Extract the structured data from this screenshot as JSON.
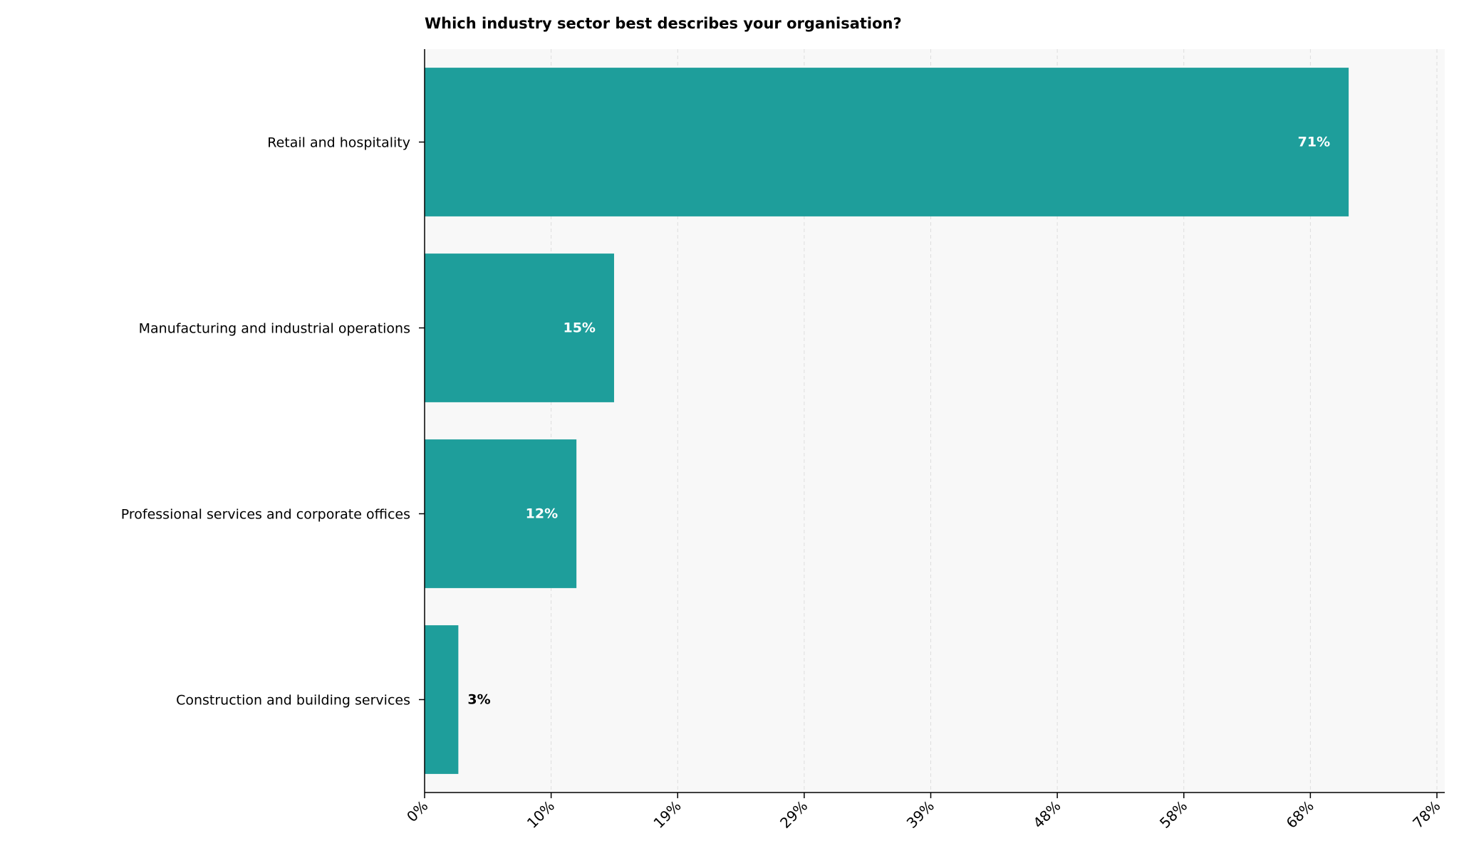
{
  "chart_data": {
    "type": "bar",
    "orientation": "horizontal",
    "title": "Which industry sector best describes your organisation?",
    "xlabel": "",
    "ylabel": "",
    "categories": [
      "Retail and hospitality",
      "Manufacturing and industrial operations",
      "Professional services and corporate offices",
      "Construction and building services"
    ],
    "values": [
      71.2,
      14.6,
      11.7,
      2.6
    ],
    "data_labels": [
      "71%",
      "15%",
      "12%",
      "3%"
    ],
    "xlim": [
      0,
      78
    ],
    "x_tick_labels": [
      "0%",
      "10%",
      "19%",
      "29%",
      "39%",
      "48%",
      "58%",
      "68%",
      "78%"
    ],
    "grid": "vertical dashed",
    "legend": "none",
    "colors": {
      "bar": "#1e9e9b",
      "plot_background": "#f8f8f8",
      "grid": "#dddddd"
    }
  }
}
